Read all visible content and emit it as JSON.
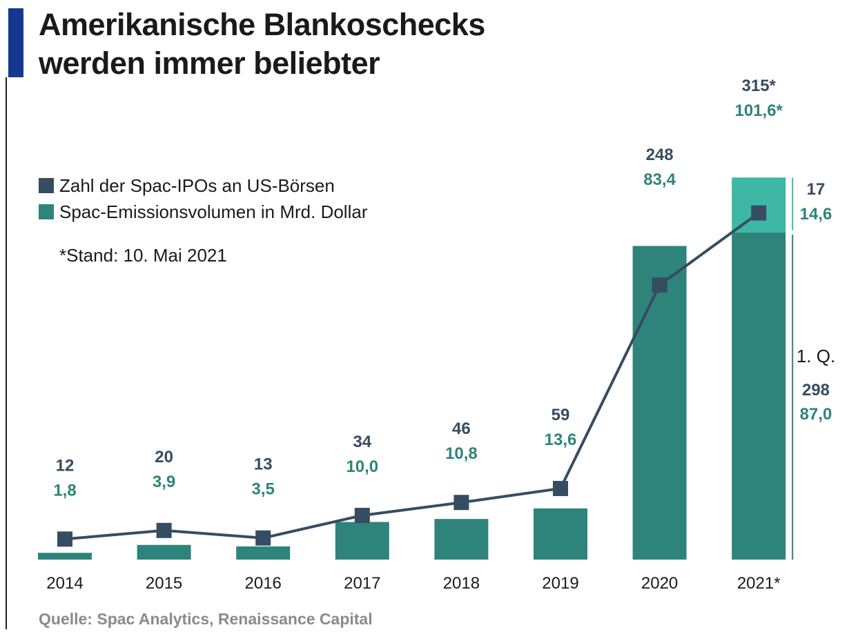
{
  "title_line1": "Amerikanische Blankoschecks",
  "title_line2": "werden immer beliebter",
  "legend": [
    {
      "label": "Zahl der Spac-IPOs an US-Börsen",
      "color": "#364c61"
    },
    {
      "label": "Spac-Emissionsvolumen in Mrd. Dollar",
      "color": "#2e847b"
    }
  ],
  "note": "*Stand: 10. Mai 2021",
  "source": "Quelle: Spac Analytics, Renaissance Capital",
  "colors": {
    "count": "#364c61",
    "volume": "#2e847b",
    "volume_light": "#3fb7a5",
    "accent": "#14388f"
  },
  "chart_data": {
    "type": "bar",
    "categories": [
      "2014",
      "2015",
      "2016",
      "2017",
      "2018",
      "2019",
      "2020",
      "2021*"
    ],
    "series": [
      {
        "name": "Spac-Emissionsvolumen in Mrd. Dollar",
        "type": "bar",
        "values": [
          1.8,
          3.9,
          3.5,
          10.0,
          10.8,
          13.6,
          83.4,
          101.6
        ]
      },
      {
        "name": "Zahl der Spac-IPOs an US-Börsen",
        "type": "line",
        "values": [
          12,
          20,
          13,
          34,
          46,
          59,
          248,
          315
        ]
      }
    ],
    "value_labels_count": [
      "12",
      "20",
      "13",
      "34",
      "46",
      "59",
      "248",
      "315*"
    ],
    "value_labels_volume": [
      "1,8",
      "3,9",
      "3,5",
      "10,0",
      "10,8",
      "13,6",
      "83,4",
      "101,6*"
    ],
    "breakdown_2021": {
      "q1": {
        "label": "1. Q.",
        "count": 298,
        "count_label": "298",
        "volume": 87.0,
        "volume_label": "87,0"
      },
      "rest": {
        "count": 17,
        "count_label": "17",
        "volume": 14.6,
        "volume_label": "14,6"
      }
    },
    "xlabel": "",
    "ylabel": ""
  }
}
